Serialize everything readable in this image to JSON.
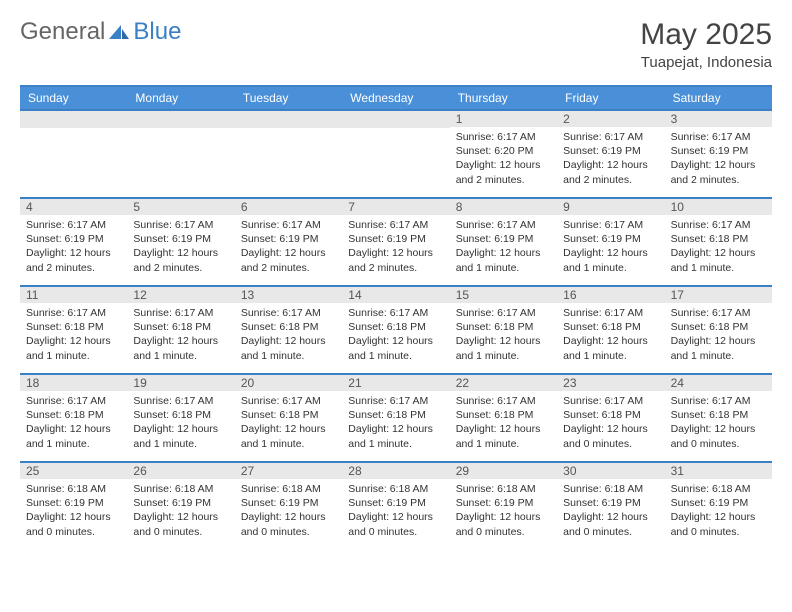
{
  "logo": {
    "text1": "General",
    "text2": "Blue"
  },
  "title": "May 2025",
  "location": "Tuapejat, Indonesia",
  "colors": {
    "header_bg": "#4a90d9",
    "header_text": "#ffffff",
    "rule": "#3b7fc4",
    "daynum_bg": "#e8e8e8",
    "text": "#333333",
    "logo_blue": "#3b7fc4",
    "logo_gray": "#666666"
  },
  "dow": [
    "Sunday",
    "Monday",
    "Tuesday",
    "Wednesday",
    "Thursday",
    "Friday",
    "Saturday"
  ],
  "leading_blanks": 4,
  "days": [
    {
      "n": "1",
      "sunrise": "6:17 AM",
      "sunset": "6:20 PM",
      "daylight": "12 hours and 2 minutes."
    },
    {
      "n": "2",
      "sunrise": "6:17 AM",
      "sunset": "6:19 PM",
      "daylight": "12 hours and 2 minutes."
    },
    {
      "n": "3",
      "sunrise": "6:17 AM",
      "sunset": "6:19 PM",
      "daylight": "12 hours and 2 minutes."
    },
    {
      "n": "4",
      "sunrise": "6:17 AM",
      "sunset": "6:19 PM",
      "daylight": "12 hours and 2 minutes."
    },
    {
      "n": "5",
      "sunrise": "6:17 AM",
      "sunset": "6:19 PM",
      "daylight": "12 hours and 2 minutes."
    },
    {
      "n": "6",
      "sunrise": "6:17 AM",
      "sunset": "6:19 PM",
      "daylight": "12 hours and 2 minutes."
    },
    {
      "n": "7",
      "sunrise": "6:17 AM",
      "sunset": "6:19 PM",
      "daylight": "12 hours and 2 minutes."
    },
    {
      "n": "8",
      "sunrise": "6:17 AM",
      "sunset": "6:19 PM",
      "daylight": "12 hours and 1 minute."
    },
    {
      "n": "9",
      "sunrise": "6:17 AM",
      "sunset": "6:19 PM",
      "daylight": "12 hours and 1 minute."
    },
    {
      "n": "10",
      "sunrise": "6:17 AM",
      "sunset": "6:18 PM",
      "daylight": "12 hours and 1 minute."
    },
    {
      "n": "11",
      "sunrise": "6:17 AM",
      "sunset": "6:18 PM",
      "daylight": "12 hours and 1 minute."
    },
    {
      "n": "12",
      "sunrise": "6:17 AM",
      "sunset": "6:18 PM",
      "daylight": "12 hours and 1 minute."
    },
    {
      "n": "13",
      "sunrise": "6:17 AM",
      "sunset": "6:18 PM",
      "daylight": "12 hours and 1 minute."
    },
    {
      "n": "14",
      "sunrise": "6:17 AM",
      "sunset": "6:18 PM",
      "daylight": "12 hours and 1 minute."
    },
    {
      "n": "15",
      "sunrise": "6:17 AM",
      "sunset": "6:18 PM",
      "daylight": "12 hours and 1 minute."
    },
    {
      "n": "16",
      "sunrise": "6:17 AM",
      "sunset": "6:18 PM",
      "daylight": "12 hours and 1 minute."
    },
    {
      "n": "17",
      "sunrise": "6:17 AM",
      "sunset": "6:18 PM",
      "daylight": "12 hours and 1 minute."
    },
    {
      "n": "18",
      "sunrise": "6:17 AM",
      "sunset": "6:18 PM",
      "daylight": "12 hours and 1 minute."
    },
    {
      "n": "19",
      "sunrise": "6:17 AM",
      "sunset": "6:18 PM",
      "daylight": "12 hours and 1 minute."
    },
    {
      "n": "20",
      "sunrise": "6:17 AM",
      "sunset": "6:18 PM",
      "daylight": "12 hours and 1 minute."
    },
    {
      "n": "21",
      "sunrise": "6:17 AM",
      "sunset": "6:18 PM",
      "daylight": "12 hours and 1 minute."
    },
    {
      "n": "22",
      "sunrise": "6:17 AM",
      "sunset": "6:18 PM",
      "daylight": "12 hours and 1 minute."
    },
    {
      "n": "23",
      "sunrise": "6:17 AM",
      "sunset": "6:18 PM",
      "daylight": "12 hours and 0 minutes."
    },
    {
      "n": "24",
      "sunrise": "6:17 AM",
      "sunset": "6:18 PM",
      "daylight": "12 hours and 0 minutes."
    },
    {
      "n": "25",
      "sunrise": "6:18 AM",
      "sunset": "6:19 PM",
      "daylight": "12 hours and 0 minutes."
    },
    {
      "n": "26",
      "sunrise": "6:18 AM",
      "sunset": "6:19 PM",
      "daylight": "12 hours and 0 minutes."
    },
    {
      "n": "27",
      "sunrise": "6:18 AM",
      "sunset": "6:19 PM",
      "daylight": "12 hours and 0 minutes."
    },
    {
      "n": "28",
      "sunrise": "6:18 AM",
      "sunset": "6:19 PM",
      "daylight": "12 hours and 0 minutes."
    },
    {
      "n": "29",
      "sunrise": "6:18 AM",
      "sunset": "6:19 PM",
      "daylight": "12 hours and 0 minutes."
    },
    {
      "n": "30",
      "sunrise": "6:18 AM",
      "sunset": "6:19 PM",
      "daylight": "12 hours and 0 minutes."
    },
    {
      "n": "31",
      "sunrise": "6:18 AM",
      "sunset": "6:19 PM",
      "daylight": "12 hours and 0 minutes."
    }
  ],
  "labels": {
    "sunrise": "Sunrise: ",
    "sunset": "Sunset: ",
    "daylight": "Daylight: "
  }
}
